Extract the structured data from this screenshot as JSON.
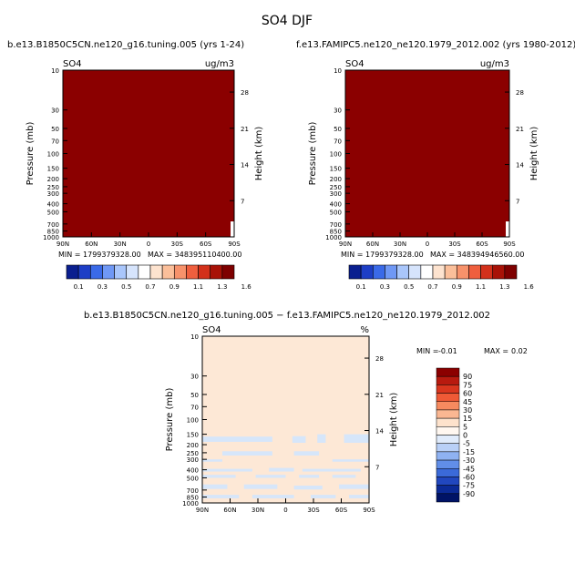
{
  "figure": {
    "title": "SO4 DJF",
    "colors": {
      "top_fill": "#8b0000",
      "diff_fill": "#fde8d6",
      "diff_patch": "#d6e6fa"
    }
  },
  "chart_data": [
    {
      "type": "heatmap",
      "title": "b.e13.B1850C5CN.ne120_g16.tuning.005 (yrs 1-24)",
      "variable": "SO4",
      "units": "ug/m3",
      "ylabel": "Pressure (mb)",
      "ylabel_right": "Height (km)",
      "x_ticks": [
        "90N",
        "60N",
        "30N",
        "0",
        "30S",
        "60S",
        "90S"
      ],
      "y_ticks": [
        "10",
        "30",
        "50",
        "70",
        "100",
        "150",
        "200",
        "250",
        "300",
        "400",
        "500",
        "700",
        "850",
        "1000"
      ],
      "height_ticks": [
        "28",
        "21",
        "14",
        "7"
      ],
      "min_label": "MIN = 1799379328.00",
      "max_label": "MAX = 348395110400.00",
      "colorbar_values": [
        "0.1",
        "0.3",
        "0.5",
        "0.7",
        "0.9",
        "1.1",
        "1.3",
        "1.6"
      ]
    },
    {
      "type": "heatmap",
      "title": "f.e13.FAMIPC5.ne120_ne120.1979_2012.002 (yrs 1980-2012)",
      "variable": "SO4",
      "units": "ug/m3",
      "ylabel": "Pressure (mb)",
      "ylabel_right": "Height (km)",
      "x_ticks": [
        "90N",
        "60N",
        "30N",
        "0",
        "30S",
        "60S",
        "90S"
      ],
      "y_ticks": [
        "10",
        "30",
        "50",
        "70",
        "100",
        "150",
        "200",
        "250",
        "300",
        "400",
        "500",
        "700",
        "850",
        "1000"
      ],
      "height_ticks": [
        "28",
        "21",
        "14",
        "7"
      ],
      "min_label": "MIN = 1799379328.00",
      "max_label": "MAX = 348394946560.00",
      "colorbar_values": [
        "0.1",
        "0.3",
        "0.5",
        "0.7",
        "0.9",
        "1.1",
        "1.3",
        "1.6"
      ]
    },
    {
      "type": "heatmap",
      "title": "b.e13.B1850C5CN.ne120_g16.tuning.005 − f.e13.FAMIPC5.ne120_ne120.1979_2012.002",
      "variable": "SO4",
      "units": "%",
      "ylabel": "Pressure (mb)",
      "ylabel_right": "Height (km)",
      "x_ticks": [
        "90N",
        "60N",
        "30N",
        "0",
        "30S",
        "60S",
        "90S"
      ],
      "y_ticks": [
        "10",
        "30",
        "50",
        "70",
        "100",
        "150",
        "200",
        "250",
        "300",
        "400",
        "500",
        "700",
        "850",
        "1000"
      ],
      "height_ticks": [
        "28",
        "21",
        "14",
        "7"
      ],
      "min_label": "MIN =",
      "min_value": "-0.01",
      "max_label": "MAX =",
      "max_value": "0.02",
      "colorbar_values": [
        "90",
        "75",
        "60",
        "45",
        "30",
        "15",
        "5",
        "0",
        "-5",
        "-15",
        "-30",
        "-45",
        "-60",
        "-75",
        "-90"
      ]
    }
  ]
}
